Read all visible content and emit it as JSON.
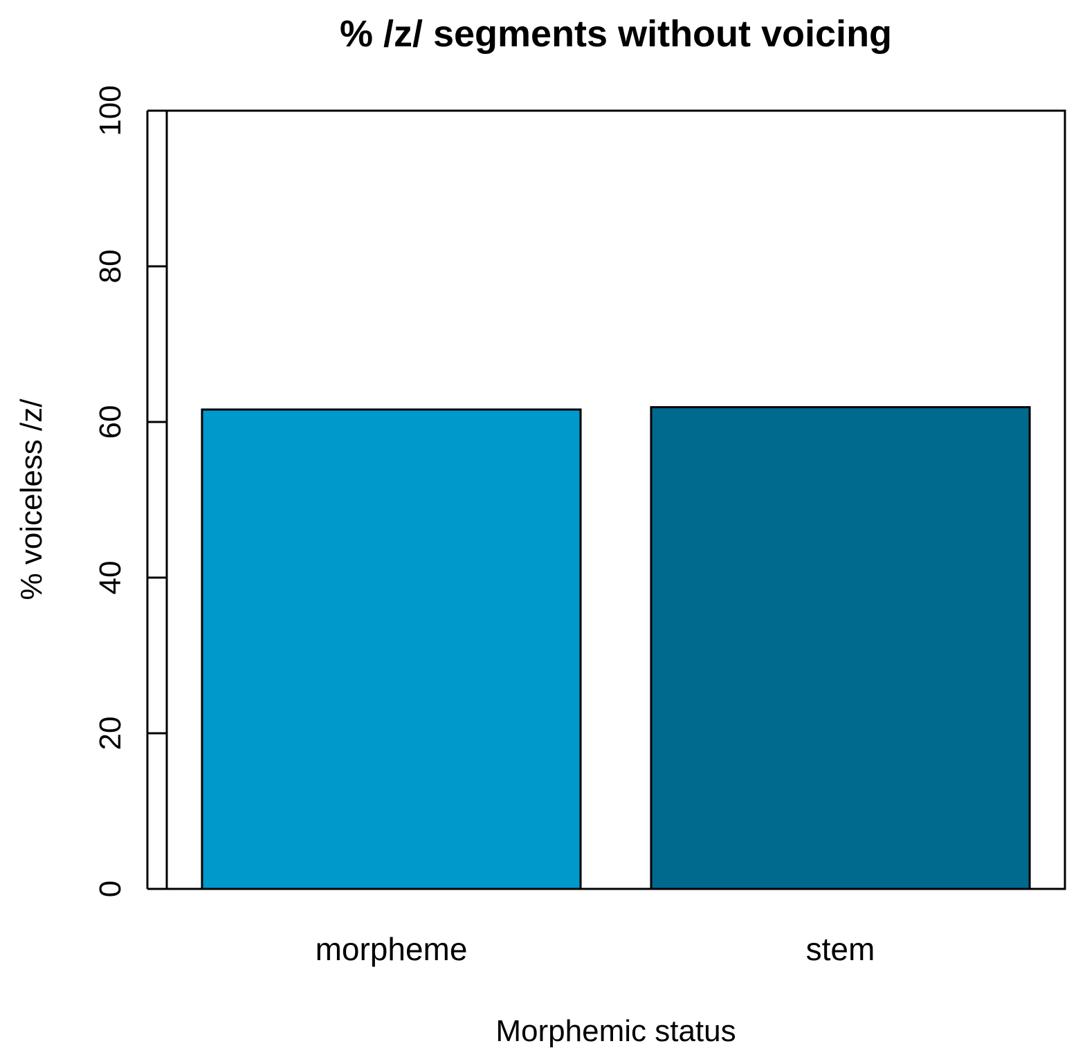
{
  "chart_data": {
    "type": "bar",
    "title": "% /z/ segments without voicing",
    "xlabel": "Morphemic status",
    "ylabel": "% voiceless /z/",
    "categories": [
      "morpheme",
      "stem"
    ],
    "values": [
      61.6,
      61.9
    ],
    "colors": [
      "#0099CC",
      "#006A8E"
    ],
    "ylim": [
      0,
      100
    ],
    "yticks": [
      0,
      20,
      40,
      60,
      80,
      100
    ],
    "grid": false,
    "legend": "none"
  }
}
